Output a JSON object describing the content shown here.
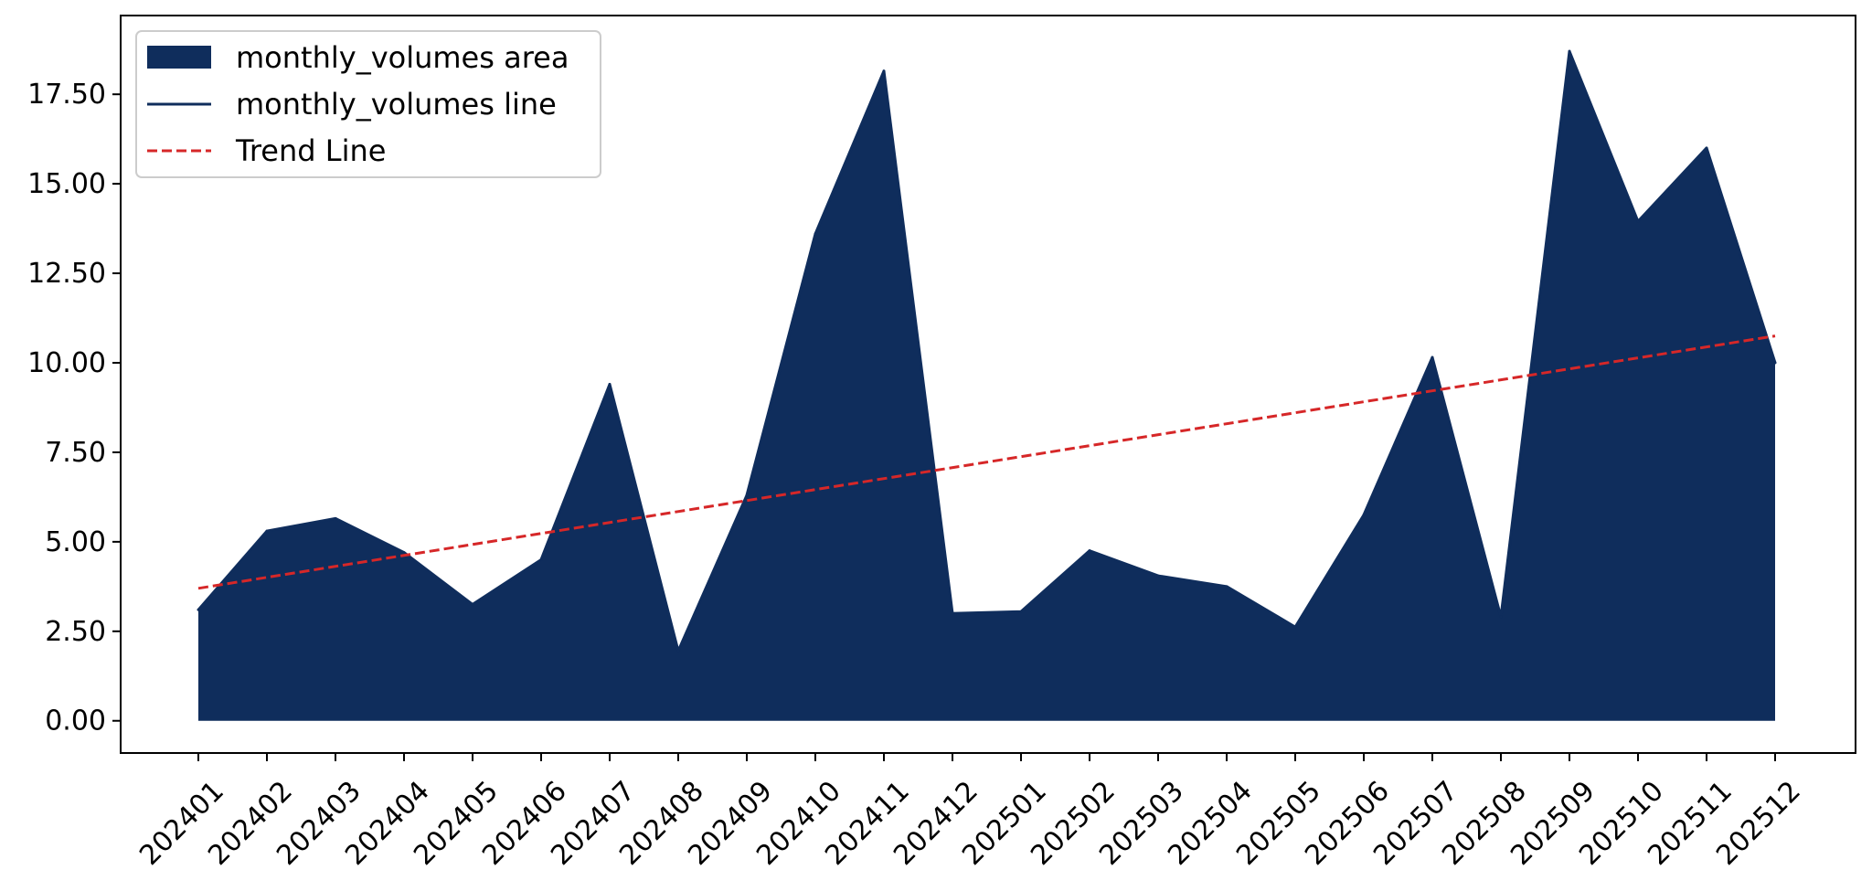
{
  "chart_data": {
    "type": "area",
    "title": "",
    "xlabel": "",
    "ylabel": "",
    "categories": [
      "202401",
      "202402",
      "202403",
      "202404",
      "202405",
      "202406",
      "202407",
      "202408",
      "202409",
      "202410",
      "202411",
      "202412",
      "202501",
      "202502",
      "202503",
      "202504",
      "202505",
      "202506",
      "202507",
      "202508",
      "202509",
      "202510",
      "202511",
      "202512"
    ],
    "series": [
      {
        "name": "monthly_volumes area",
        "kind": "area",
        "color": "#0f2d5c",
        "values": [
          3.1,
          5.3,
          5.65,
          4.7,
          3.25,
          4.5,
          9.4,
          1.95,
          6.3,
          13.6,
          18.15,
          3.0,
          3.05,
          4.75,
          4.05,
          3.75,
          2.62,
          5.75,
          10.15,
          2.9,
          18.7,
          13.95,
          16.0,
          10.0
        ]
      },
      {
        "name": "monthly_volumes line",
        "kind": "line",
        "color": "#0f2d5c",
        "values": [
          3.1,
          5.3,
          5.65,
          4.7,
          3.25,
          4.5,
          9.4,
          1.95,
          6.3,
          13.6,
          18.15,
          3.0,
          3.05,
          4.75,
          4.05,
          3.75,
          2.62,
          5.75,
          10.15,
          2.9,
          18.7,
          13.95,
          16.0,
          10.0
        ]
      },
      {
        "name": "Trend Line",
        "kind": "trend",
        "color": "#d62728",
        "style": "dashed",
        "start": 3.7,
        "end": 10.75
      }
    ],
    "yticks": [
      "0.00",
      "2.50",
      "5.00",
      "7.50",
      "10.00",
      "12.50",
      "15.00",
      "17.50"
    ],
    "ylim": [
      -0.9,
      19.7
    ],
    "grid": false,
    "legend": "upper-left"
  }
}
